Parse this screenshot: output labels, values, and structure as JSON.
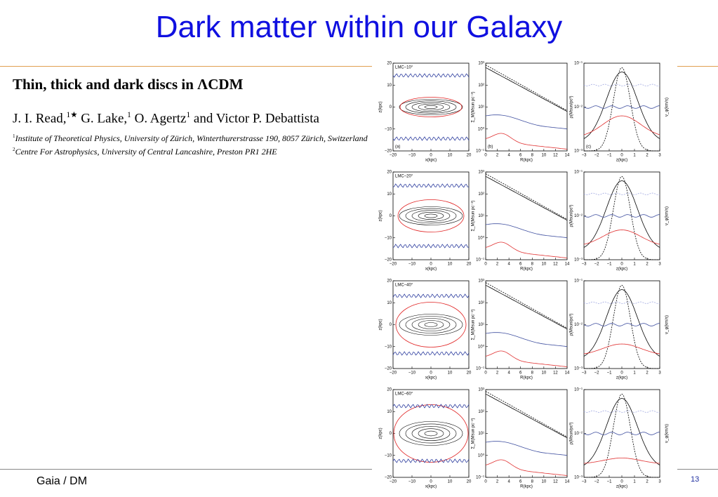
{
  "header": {
    "title": "Dark matter within our Galaxy"
  },
  "paper": {
    "title": "Thin, thick and dark discs in ΛCDM",
    "authors": [
      {
        "name": "J. I. Read,",
        "mark": "1★"
      },
      {
        "name": "G. Lake,",
        "mark": "1"
      },
      {
        "name": "O. Agertz",
        "mark": "1"
      },
      {
        "name": "and Victor P. Debattista"
      }
    ],
    "affiliations": [
      {
        "mark": "1",
        "text": "Institute of Theoretical Physics, University of Zürich, Winterthurerstrasse 190, 8057 Zürich, Switzerland"
      },
      {
        "mark": "2",
        "text": "Centre For Astrophysics, University of Central Lancashire, Preston PR1 2HE"
      }
    ]
  },
  "figure": {
    "rows": [
      {
        "label": "LMC−10°"
      },
      {
        "label": "LMC−20°"
      },
      {
        "label": "LMC−40°"
      },
      {
        "label": "LMC−60°"
      }
    ],
    "columns": [
      {
        "letter": "(a)",
        "xticks": [
          "−20",
          "−10",
          "0",
          "10",
          "20"
        ],
        "xlabel": "x(kpc)",
        "yticks": [
          "20",
          "10",
          "0",
          "−10",
          "−20"
        ],
        "ylabel": "z(kpc)"
      },
      {
        "letter": "(b)",
        "xticks": [
          "0",
          "2",
          "4",
          "6",
          "8",
          "10",
          "12",
          "14"
        ],
        "xlabel": "R(kpc)",
        "yticks": [
          "10³",
          "10²",
          "10¹",
          "10⁰",
          "10⁻¹"
        ],
        "ylabel": "Σ_M(Msun pc⁻²)"
      },
      {
        "letter": "(c)",
        "xticks": [
          "−3",
          "−2",
          "−1",
          "0",
          "1",
          "2",
          "3"
        ],
        "xlabel": "z(kpc)",
        "yticks": [
          "10⁻¹",
          "10⁻²",
          "10⁻³"
        ],
        "ylabel": "ρ(Msun/pc³)",
        "y2label": "v_φ(km/s)"
      }
    ]
  },
  "footer": {
    "left": "Gaia / DM",
    "page": "13"
  }
}
